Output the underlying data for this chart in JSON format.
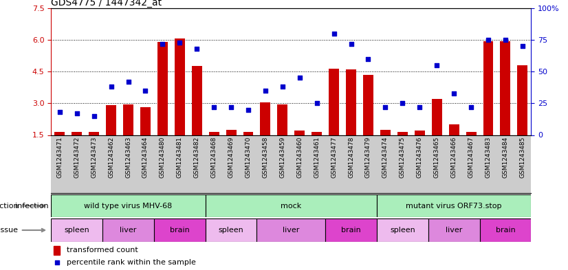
{
  "title": "GDS4775 / 1447342_at",
  "samples": [
    "GSM1243471",
    "GSM1243472",
    "GSM1243473",
    "GSM1243462",
    "GSM1243463",
    "GSM1243464",
    "GSM1243480",
    "GSM1243481",
    "GSM1243482",
    "GSM1243468",
    "GSM1243469",
    "GSM1243470",
    "GSM1243458",
    "GSM1243459",
    "GSM1243460",
    "GSM1243461",
    "GSM1243477",
    "GSM1243478",
    "GSM1243479",
    "GSM1243474",
    "GSM1243475",
    "GSM1243476",
    "GSM1243465",
    "GSM1243466",
    "GSM1243467",
    "GSM1243483",
    "GSM1243484",
    "GSM1243485"
  ],
  "transformed_count": [
    1.65,
    1.65,
    1.65,
    2.9,
    2.95,
    2.8,
    5.9,
    6.05,
    4.75,
    1.65,
    1.75,
    1.65,
    3.05,
    2.95,
    1.7,
    1.65,
    4.65,
    4.6,
    4.35,
    1.75,
    1.65,
    1.7,
    3.2,
    2.0,
    1.65,
    5.95,
    5.95,
    4.8
  ],
  "percentile_rank": [
    18,
    17,
    15,
    38,
    42,
    35,
    72,
    73,
    68,
    22,
    22,
    20,
    35,
    38,
    45,
    25,
    80,
    72,
    60,
    22,
    25,
    22,
    55,
    33,
    22,
    75,
    75,
    70
  ],
  "ylim_left": [
    1.5,
    7.5
  ],
  "ylim_right": [
    0,
    100
  ],
  "yticks_left": [
    1.5,
    3.0,
    4.5,
    6.0,
    7.5
  ],
  "yticks_right": [
    0,
    25,
    50,
    75,
    100
  ],
  "bar_color": "#cc0000",
  "dot_color": "#0000cc",
  "infection_groups": [
    {
      "label": "wild type virus MHV-68",
      "start": 0,
      "end": 8
    },
    {
      "label": "mock",
      "start": 9,
      "end": 18
    },
    {
      "label": "mutant virus ORF73.stop",
      "start": 19,
      "end": 27
    }
  ],
  "tissue_groups": [
    {
      "label": "spleen",
      "start": 0,
      "end": 2,
      "color": "#eebbee"
    },
    {
      "label": "liver",
      "start": 3,
      "end": 5,
      "color": "#dd88dd"
    },
    {
      "label": "brain",
      "start": 6,
      "end": 8,
      "color": "#dd44cc"
    },
    {
      "label": "spleen",
      "start": 9,
      "end": 11,
      "color": "#eebbee"
    },
    {
      "label": "liver",
      "start": 12,
      "end": 15,
      "color": "#dd88dd"
    },
    {
      "label": "brain",
      "start": 16,
      "end": 18,
      "color": "#dd44cc"
    },
    {
      "label": "spleen",
      "start": 19,
      "end": 21,
      "color": "#eebbee"
    },
    {
      "label": "liver",
      "start": 22,
      "end": 24,
      "color": "#dd88dd"
    },
    {
      "label": "brain",
      "start": 25,
      "end": 27,
      "color": "#dd44cc"
    }
  ],
  "inf_color": "#aaeebb",
  "xlabel_bg": "#cccccc",
  "infection_label": "infection",
  "tissue_label": "tissue"
}
